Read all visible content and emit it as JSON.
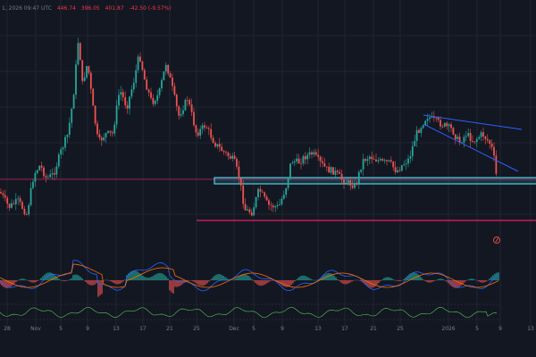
{
  "header": {
    "timestamp": "1, 2026 09:47 UTC",
    "values": [
      "446.74",
      "396.05",
      "401.87"
    ],
    "change": "-42.50 (-9.57%)"
  },
  "colors": {
    "background": "#131722",
    "grid": "#1f2431",
    "up": "#26a69a",
    "down": "#ef5350",
    "trendline": "#2962ff",
    "level_red": "#e91e63",
    "zone_cyan": "#4dd0e1",
    "macd_line": "#2962ff",
    "signal_line": "#ff6d00",
    "rsi_line": "#4caf50",
    "axis_text": "#787b86"
  },
  "x_axis": {
    "labels": [
      "28",
      "Nov",
      "5",
      "9",
      "13",
      "17",
      "21",
      "25",
      "Dec",
      "5",
      "9",
      "13",
      "17",
      "21",
      "25",
      "2026",
      "5",
      "9",
      "13"
    ]
  },
  "chart_data": {
    "type": "candlestick",
    "title": "",
    "xlabel": "",
    "ylabel": "",
    "series": [],
    "grid": true
  }
}
